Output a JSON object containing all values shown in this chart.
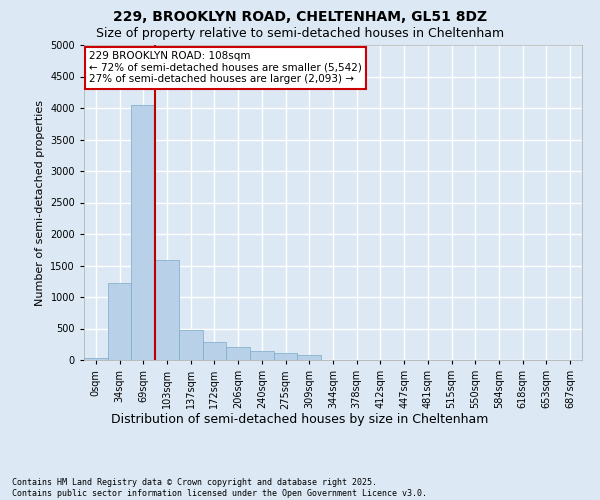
{
  "title_line1": "229, BROOKLYN ROAD, CHELTENHAM, GL51 8DZ",
  "title_line2": "Size of property relative to semi-detached houses in Cheltenham",
  "xlabel": "Distribution of semi-detached houses by size in Cheltenham",
  "ylabel": "Number of semi-detached properties",
  "footer_line1": "Contains HM Land Registry data © Crown copyright and database right 2025.",
  "footer_line2": "Contains public sector information licensed under the Open Government Licence v3.0.",
  "annotation_title": "229 BROOKLYN ROAD: 108sqm",
  "annotation_smaller": "← 72% of semi-detached houses are smaller (5,542)",
  "annotation_larger": "27% of semi-detached houses are larger (2,093) →",
  "bar_categories": [
    "0sqm",
    "34sqm",
    "69sqm",
    "103sqm",
    "137sqm",
    "172sqm",
    "206sqm",
    "240sqm",
    "275sqm",
    "309sqm",
    "344sqm",
    "378sqm",
    "412sqm",
    "447sqm",
    "481sqm",
    "515sqm",
    "550sqm",
    "584sqm",
    "618sqm",
    "653sqm",
    "687sqm"
  ],
  "bar_values": [
    30,
    1230,
    4050,
    1580,
    480,
    290,
    210,
    145,
    105,
    80,
    0,
    0,
    0,
    0,
    0,
    0,
    0,
    0,
    0,
    0,
    0
  ],
  "bar_color": "#b8d0e8",
  "bar_edge_color": "#7aaac8",
  "vline_color": "#bb0000",
  "vline_pos": 3.0,
  "background_color": "#dce9f5",
  "plot_bg_color": "#dce9f5",
  "ylim": [
    0,
    5000
  ],
  "yticks": [
    0,
    500,
    1000,
    1500,
    2000,
    2500,
    3000,
    3500,
    4000,
    4500,
    5000
  ],
  "annotation_box_facecolor": "#ffffff",
  "annotation_box_edgecolor": "#cc0000",
  "grid_color": "#ffffff",
  "title_fontsize": 10,
  "subtitle_fontsize": 9,
  "ylabel_fontsize": 8,
  "xlabel_fontsize": 9,
  "tick_fontsize": 7,
  "annotation_fontsize": 7.5,
  "footer_fontsize": 6
}
